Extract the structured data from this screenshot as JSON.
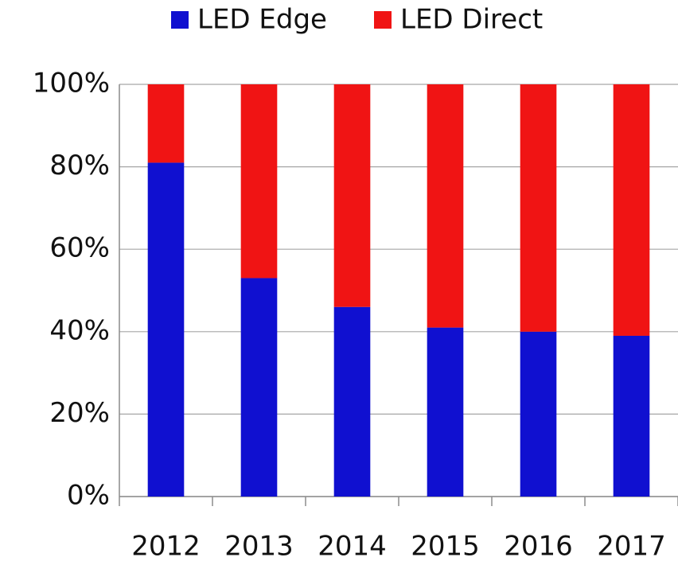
{
  "chart_data": {
    "type": "stacked_bar",
    "categories": [
      "2012",
      "2013",
      "2014",
      "2015",
      "2016",
      "2017"
    ],
    "series": [
      {
        "name": "LED Edge",
        "color": "#1010d0",
        "values": [
          81,
          53,
          46,
          41,
          40,
          39
        ]
      },
      {
        "name": "LED Direct",
        "color": "#f01414",
        "values": [
          19,
          47,
          54,
          59,
          60,
          61
        ]
      }
    ],
    "ylim": [
      0,
      100
    ],
    "yticks": [
      {
        "value": 0,
        "label": "0%"
      },
      {
        "value": 20,
        "label": "20%"
      },
      {
        "value": 40,
        "label": "40%"
      },
      {
        "value": 60,
        "label": "60%"
      },
      {
        "value": 80,
        "label": "80%"
      },
      {
        "value": 100,
        "label": "100%"
      }
    ],
    "grid": true,
    "legend": "top"
  }
}
